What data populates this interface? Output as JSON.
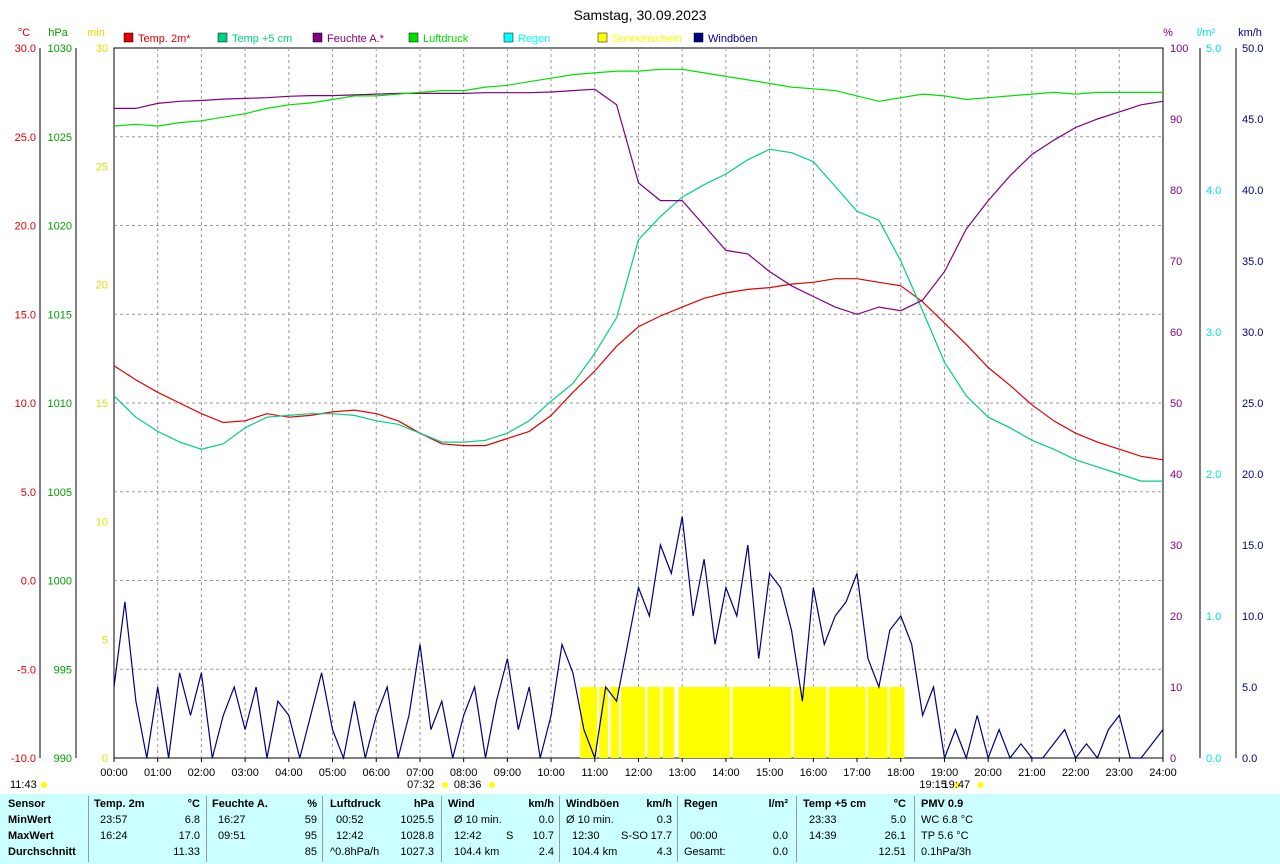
{
  "chart_data": {
    "type": "line",
    "title": "Samstag, 30.09.2023",
    "x_ticks": [
      "00:00",
      "01:00",
      "02:00",
      "03:00",
      "04:00",
      "05:00",
      "06:00",
      "07:00",
      "08:00",
      "09:00",
      "10:00",
      "11:00",
      "12:00",
      "13:00",
      "14:00",
      "15:00",
      "16:00",
      "17:00",
      "18:00",
      "19:00",
      "20:00",
      "21:00",
      "22:00",
      "23:00",
      "24:00"
    ],
    "axes": {
      "temp": {
        "unit": "°C",
        "ticks": [
          "30.0",
          "25.0",
          "20.0",
          "15.0",
          "10.0",
          "5.0",
          "0.0",
          "-5.0",
          "-10.0"
        ],
        "range": [
          -10,
          30
        ],
        "color": "#e00000"
      },
      "pressure": {
        "unit": "hPa",
        "ticks": [
          "1030",
          "1025",
          "1020",
          "1015",
          "1010",
          "1005",
          "1000",
          "995",
          "990"
        ],
        "range": [
          990,
          1030
        ],
        "color": "#00a000"
      },
      "sunshine": {
        "unit": "min",
        "ticks": [
          "30",
          "25",
          "20",
          "15",
          "10",
          "5",
          "0"
        ],
        "range": [
          0,
          30
        ],
        "color": "#e0e000"
      },
      "humidity": {
        "unit": "%",
        "ticks": [
          "100",
          "90",
          "80",
          "70",
          "60",
          "50",
          "40",
          "30",
          "20",
          "10",
          "0"
        ],
        "range": [
          0,
          100
        ],
        "color": "#800080"
      },
      "rain": {
        "unit": "l/m²",
        "ticks": [
          "5.0",
          "4.0",
          "3.0",
          "2.0",
          "1.0",
          "0.0"
        ],
        "range": [
          0,
          5
        ],
        "color": "#00e0e0"
      },
      "wind": {
        "unit": "km/h",
        "ticks": [
          "50.0",
          "45.0",
          "40.0",
          "35.0",
          "30.0",
          "25.0",
          "20.0",
          "15.0",
          "10.0",
          "5.0",
          "0.0"
        ],
        "range": [
          0,
          50
        ],
        "color": "#000080"
      }
    },
    "legend": [
      {
        "label": "Temp. 2m*",
        "color": "#e00000"
      },
      {
        "label": "Temp +5 cm",
        "color": "#00d080"
      },
      {
        "label": "Feuchte A.*",
        "color": "#800080"
      },
      {
        "label": "Luftdruck",
        "color": "#00e000"
      },
      {
        "label": "Regen",
        "color": "#00ffff"
      },
      {
        "label": "Sonnenschein",
        "color": "#ffff00"
      },
      {
        "label": "Windböen",
        "color": "#000080"
      }
    ],
    "series": [
      {
        "name": "Temp. 2m*",
        "axis": "temp",
        "color": "#e00000",
        "x": [
          0,
          0.5,
          1,
          1.5,
          2,
          2.5,
          3,
          3.5,
          4,
          4.5,
          5,
          5.5,
          6,
          6.5,
          7,
          7.5,
          8,
          8.5,
          9,
          9.5,
          10,
          10.5,
          11,
          11.5,
          12,
          12.5,
          13,
          13.5,
          14,
          14.5,
          15,
          15.5,
          16,
          16.5,
          17,
          17.5,
          18,
          18.5,
          19,
          19.5,
          20,
          20.5,
          21,
          21.5,
          22,
          22.5,
          23,
          23.5,
          24
        ],
        "y": [
          12.1,
          11.3,
          10.6,
          10.0,
          9.4,
          8.9,
          9.0,
          9.4,
          9.2,
          9.3,
          9.5,
          9.6,
          9.4,
          9.0,
          8.3,
          7.7,
          7.6,
          7.6,
          8.0,
          8.4,
          9.3,
          10.6,
          11.8,
          13.2,
          14.3,
          14.9,
          15.4,
          15.9,
          16.2,
          16.4,
          16.5,
          16.7,
          16.8,
          17.0,
          17.0,
          16.8,
          16.6,
          15.7,
          14.5,
          13.3,
          12.0,
          11.0,
          9.9,
          9.0,
          8.3,
          7.8,
          7.4,
          7.0,
          6.8
        ]
      },
      {
        "name": "Temp +5 cm",
        "axis": "temp",
        "color": "#00d080",
        "x": [
          0,
          0.5,
          1,
          1.5,
          2,
          2.5,
          3,
          3.5,
          4,
          4.5,
          5,
          5.5,
          6,
          6.5,
          7,
          7.5,
          8,
          8.5,
          9,
          9.5,
          10,
          10.5,
          11,
          11.5,
          12,
          12.5,
          13,
          13.5,
          14,
          14.5,
          15,
          15.5,
          16,
          16.5,
          17,
          17.5,
          18,
          18.5,
          19,
          19.5,
          20,
          20.5,
          21,
          21.5,
          22,
          22.5,
          23,
          23.5,
          24
        ],
        "y": [
          10.4,
          9.2,
          8.4,
          7.8,
          7.4,
          7.7,
          8.6,
          9.2,
          9.3,
          9.4,
          9.4,
          9.3,
          9.0,
          8.8,
          8.3,
          7.8,
          7.8,
          7.9,
          8.3,
          9.0,
          10.1,
          11.1,
          12.8,
          14.8,
          19.2,
          20.5,
          21.6,
          22.3,
          22.9,
          23.7,
          24.3,
          24.1,
          23.6,
          22.2,
          20.8,
          20.3,
          18.0,
          15.2,
          12.3,
          10.4,
          9.2,
          8.6,
          7.9,
          7.4,
          6.8,
          6.4,
          6.0,
          5.6,
          5.6
        ]
      },
      {
        "name": "Feuchte A.*",
        "axis": "humidity",
        "color": "#800080",
        "x": [
          0,
          0.5,
          1,
          1.5,
          2,
          2.5,
          3,
          3.5,
          4,
          4.5,
          5,
          5.5,
          6,
          6.5,
          7,
          7.5,
          8,
          8.5,
          9,
          9.5,
          10,
          10.5,
          11,
          11.5,
          12,
          12.5,
          13,
          13.5,
          14,
          14.5,
          15,
          15.5,
          16,
          16.5,
          17,
          17.5,
          18,
          18.5,
          19,
          19.5,
          20,
          20.5,
          21,
          21.5,
          22,
          22.5,
          23,
          23.5,
          24
        ],
        "y": [
          91.5,
          91.5,
          92.2,
          92.5,
          92.6,
          92.8,
          92.9,
          93.0,
          93.2,
          93.3,
          93.3,
          93.4,
          93.5,
          93.6,
          93.6,
          93.6,
          93.6,
          93.7,
          93.7,
          93.7,
          93.8,
          94.0,
          94.2,
          92.0,
          81.0,
          78.5,
          78.5,
          75.0,
          71.5,
          71.0,
          68.5,
          66.5,
          65.0,
          63.5,
          62.5,
          63.5,
          63.0,
          64.5,
          68.5,
          74.5,
          78.5,
          82.0,
          85.0,
          87.0,
          88.8,
          90.0,
          91.0,
          92.0,
          92.5
        ]
      },
      {
        "name": "Luftdruck",
        "axis": "pressure",
        "color": "#00e000",
        "x": [
          0,
          0.5,
          1,
          1.5,
          2,
          2.5,
          3,
          3.5,
          4,
          4.5,
          5,
          5.5,
          6,
          6.5,
          7,
          7.5,
          8,
          8.5,
          9,
          9.5,
          10,
          10.5,
          11,
          11.5,
          12,
          12.5,
          13,
          13.5,
          14,
          14.5,
          15,
          15.5,
          16,
          16.5,
          17,
          17.5,
          18,
          18.5,
          19,
          19.5,
          20,
          20.5,
          21,
          21.5,
          22,
          22.5,
          23,
          23.5,
          24
        ],
        "y": [
          1025.6,
          1025.7,
          1025.6,
          1025.8,
          1025.9,
          1026.1,
          1026.3,
          1026.6,
          1026.8,
          1026.9,
          1027.1,
          1027.3,
          1027.3,
          1027.4,
          1027.5,
          1027.6,
          1027.6,
          1027.8,
          1027.9,
          1028.1,
          1028.3,
          1028.5,
          1028.6,
          1028.7,
          1028.7,
          1028.8,
          1028.8,
          1028.6,
          1028.4,
          1028.2,
          1028.0,
          1027.8,
          1027.7,
          1027.6,
          1027.3,
          1027.0,
          1027.2,
          1027.4,
          1027.3,
          1027.1,
          1027.2,
          1027.3,
          1027.4,
          1027.5,
          1027.4,
          1027.5,
          1027.5,
          1027.5,
          1027.5
        ]
      },
      {
        "name": "Windböen",
        "axis": "wind",
        "color": "#000080",
        "x": [
          0,
          0.25,
          0.5,
          0.75,
          1,
          1.25,
          1.5,
          1.75,
          2,
          2.25,
          2.5,
          2.75,
          3,
          3.25,
          3.5,
          3.75,
          4,
          4.25,
          4.5,
          4.75,
          5,
          5.25,
          5.5,
          5.75,
          6,
          6.25,
          6.5,
          6.75,
          7,
          7.25,
          7.5,
          7.75,
          8,
          8.25,
          8.5,
          8.75,
          9,
          9.25,
          9.5,
          9.75,
          10,
          10.25,
          10.5,
          10.75,
          11,
          11.25,
          11.5,
          11.75,
          12,
          12.25,
          12.5,
          12.75,
          13,
          13.25,
          13.5,
          13.75,
          14,
          14.25,
          14.5,
          14.75,
          15,
          15.25,
          15.5,
          15.75,
          16,
          16.25,
          16.5,
          16.75,
          17,
          17.25,
          17.5,
          17.75,
          18,
          18.25,
          18.5,
          18.75,
          19,
          19.25,
          19.5,
          19.75,
          20,
          20.25,
          20.5,
          20.75,
          21,
          21.25,
          21.5,
          21.75,
          22,
          22.25,
          22.5,
          22.75,
          23,
          23.25,
          23.5,
          23.75,
          24
        ],
        "y": [
          5,
          11,
          4,
          0,
          5,
          0,
          6,
          3,
          6,
          0,
          3,
          5,
          2,
          5,
          0,
          4,
          3,
          0,
          3,
          6,
          2,
          0,
          4,
          0,
          3,
          5,
          0,
          3,
          8,
          2,
          4,
          0,
          3,
          5,
          0,
          4,
          7,
          2,
          5,
          0,
          3,
          8,
          6,
          2,
          0,
          5,
          4,
          8,
          12,
          10,
          15,
          13,
          17,
          10,
          14,
          8,
          12,
          10,
          15,
          7,
          13,
          12,
          9,
          4,
          12,
          8,
          10,
          11,
          13,
          7,
          5,
          9,
          10,
          8,
          3,
          5,
          0,
          2,
          0,
          3,
          0,
          2,
          0,
          1,
          0,
          0,
          1,
          2,
          0,
          1,
          0,
          2,
          3,
          0,
          0,
          1,
          2
        ]
      }
    ],
    "sunshine": {
      "axis": "sunshine",
      "color": "#ffff00",
      "start": "10:40",
      "end": "18:05",
      "value": 3
    },
    "markers": [
      {
        "label": "11:43",
        "x": 0.0,
        "color": "#ffff00"
      },
      {
        "label": "07:32",
        "x": 7.53,
        "color": "#ffff00"
      },
      {
        "label": "08:36",
        "x": 8.6,
        "color": "#ffff00"
      },
      {
        "label": "19:15",
        "x": 19.25,
        "color": "#ffff00"
      },
      {
        "label": "19:47",
        "x": 19.78,
        "color": "#ffff00"
      }
    ]
  },
  "summary": {
    "row_labels": [
      "Sensor",
      "MinWert",
      "MaxWert",
      "Durchschnitt"
    ],
    "temp2m": {
      "title": "Temp. 2m",
      "unit": "°C",
      "min_time": "23:57",
      "min": "6.8",
      "max_time": "16:24",
      "max": "17.0",
      "avg": "11.33"
    },
    "humidity": {
      "title": "Feuchte A.",
      "unit": "%",
      "min_time": "16:27",
      "min": "59",
      "max_time": "09:51",
      "max": "95",
      "avg": "85"
    },
    "pressure": {
      "title": "Luftdruck",
      "unit": "hPa",
      "min_time": "00:52",
      "min": "1025.5",
      "max_time": "12:42",
      "max": "1028.8",
      "avg_label": "^0.8hPa/h",
      "avg": "1027.3"
    },
    "wind": {
      "title": "Wind",
      "unit": "km/h",
      "r1_label": "Ø 10 min.",
      "r1_val": "0.0",
      "r2_label": "12:42",
      "r2_dir": "S",
      "r2_val": "10.7",
      "r3_label": "104.4 km",
      "r3_val": "2.4"
    },
    "gusts": {
      "title": "Windböen",
      "unit": "km/h",
      "r1_label": "Ø 10 min.",
      "r1_val": "0.3",
      "r2_label": "12:30",
      "r2_dir": "S-SO",
      "r2_val": "17.7",
      "r3_label": "104.4 km",
      "r3_val": "4.3"
    },
    "rain": {
      "title": "Regen",
      "unit": "l/m²",
      "r2_label": "00:00",
      "r2_val": "0.0",
      "r3_label": "Gesamt:",
      "r3_val": "0.0"
    },
    "temp5cm": {
      "title": "Temp +5 cm",
      "unit": "°C",
      "min_time": "23:33",
      "min": "5.0",
      "max_time": "14:39",
      "max": "26.1",
      "avg": "12.51"
    },
    "pmv": {
      "title": "PMV 0.9",
      "wc": "WC 6.8 °C",
      "tp": "TP 5.6 °C",
      "trend": "0.1hPa/3h"
    }
  }
}
